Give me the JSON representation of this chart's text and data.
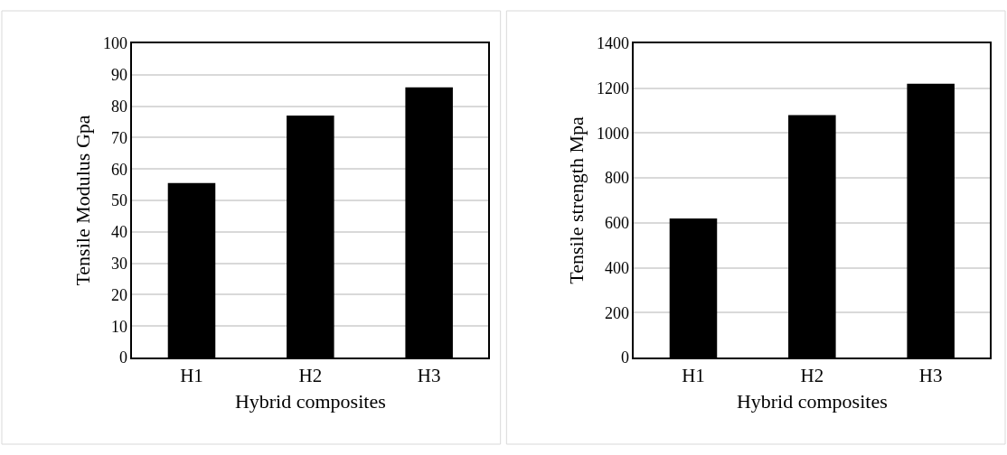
{
  "chart_data": [
    {
      "type": "bar",
      "xlabel": "Hybrid composites",
      "ylabel": "Tensile Modulus Gpa",
      "categories": [
        "H1",
        "H2",
        "H3"
      ],
      "values": [
        55.5,
        77,
        86
      ],
      "color": "#000000",
      "ylim": [
        0,
        100
      ],
      "yticks": [
        0,
        10,
        20,
        30,
        40,
        50,
        60,
        70,
        80,
        90,
        100
      ],
      "grid": "y"
    },
    {
      "type": "bar",
      "xlabel": "Hybrid composites",
      "ylabel": "Tensile strength Mpa",
      "categories": [
        "H1",
        "H2",
        "H3"
      ],
      "values": [
        620,
        1080,
        1220
      ],
      "color": "#000000",
      "ylim": [
        0,
        1400
      ],
      "yticks": [
        0,
        200,
        400,
        600,
        800,
        1000,
        1200,
        1400
      ],
      "grid": "y"
    }
  ]
}
